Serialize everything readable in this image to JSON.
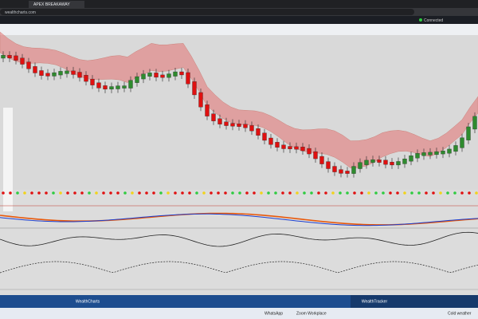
{
  "browser": {
    "tab": "APEX BREAKAWAY",
    "address": "wealthcharts.com"
  },
  "header": {
    "status": "Connected"
  },
  "panels": {
    "left": "WealthCharts",
    "right": "WealthTracker"
  },
  "taskbar": {
    "items": [
      "WhatsApp",
      "Zoom Workplace"
    ],
    "weather": "Cold weather"
  }
}
